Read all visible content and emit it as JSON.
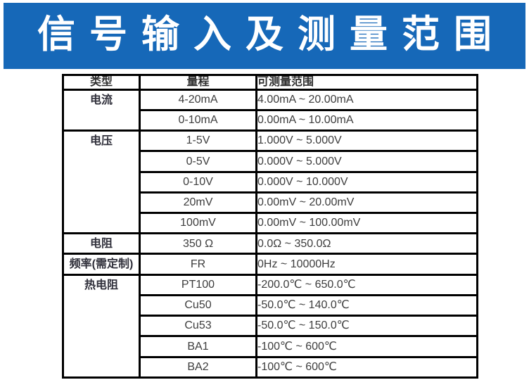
{
  "banner": {
    "title": "信号输入及测量范围",
    "bg_color": "#1668b8",
    "text_color": "#ffffff"
  },
  "table": {
    "headers": [
      "类型",
      "量程",
      "可测量范围"
    ],
    "groups": [
      {
        "type": "电流",
        "rows": [
          {
            "range": "4-20mA",
            "measurable": "4.00mA ~ 20.00mA"
          },
          {
            "range": "0-10mA",
            "measurable": "0.00mA ~ 10.00mA"
          }
        ]
      },
      {
        "type": "电压",
        "rows": [
          {
            "range": "1-5V",
            "measurable": "1.000V ~ 5.000V"
          },
          {
            "range": "0-5V",
            "measurable": "0.000V ~ 5.000V"
          },
          {
            "range": "0-10V",
            "measurable": "0.000V ~ 10.000V"
          },
          {
            "range": "20mV",
            "measurable": "0.00mV ~ 20.00mV"
          },
          {
            "range": "100mV",
            "measurable": "0.00mV ~ 100.00mV"
          }
        ]
      },
      {
        "type": "电阻",
        "rows": [
          {
            "range": "350 Ω",
            "measurable": "0.0Ω ~ 350.0Ω"
          }
        ]
      },
      {
        "type": "频率(需定制)",
        "rows": [
          {
            "range": "FR",
            "measurable": "0Hz ~ 10000Hz"
          }
        ]
      },
      {
        "type": "热电阻",
        "rows": [
          {
            "range": "PT100",
            "measurable": "-200.0℃ ~ 650.0℃"
          },
          {
            "range": "Cu50",
            "measurable": "-50.0℃ ~ 140.0℃"
          },
          {
            "range": "Cu53",
            "measurable": "-50.0℃ ~ 150.0℃"
          },
          {
            "range": "BA1",
            "measurable": "-100℃ ~ 600℃"
          },
          {
            "range": "BA2",
            "measurable": "-100℃ ~ 600℃"
          }
        ]
      }
    ]
  }
}
